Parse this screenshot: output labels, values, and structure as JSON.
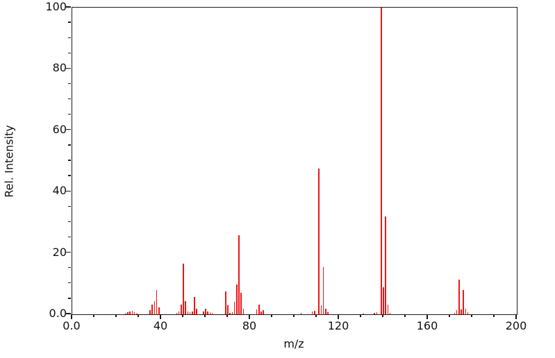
{
  "figure": {
    "background_color": "#ffffff",
    "axis_color": "#1a1a1a",
    "peak_color": "#f01414"
  },
  "chart_data": {
    "type": "bar",
    "subtype": "mass-spectrum-stick-plot",
    "title": "",
    "xlabel": "m/z",
    "ylabel": "Rel. Intensity",
    "xlim": [
      0,
      200
    ],
    "ylim": [
      0,
      100
    ],
    "grid": false,
    "legend_position": "none",
    "x_major_ticks": [
      0,
      40,
      80,
      120,
      160,
      200
    ],
    "x_tick_labels": [
      "0.0",
      "40",
      "80",
      "120",
      "160",
      "200"
    ],
    "x_minor_tick_step": 10,
    "y_major_ticks": [
      0,
      20,
      40,
      60,
      80,
      100
    ],
    "y_tick_labels": [
      "0.0",
      "20",
      "40",
      "60",
      "80",
      "100"
    ],
    "y_minor_tick_step": 5,
    "series": [
      {
        "name": "relative-intensity",
        "color": "#f01414",
        "points": [
          [
            24,
            0.3
          ],
          [
            25,
            0.6
          ],
          [
            26,
            1.0
          ],
          [
            27,
            1.1
          ],
          [
            28,
            0.6
          ],
          [
            29,
            0.3
          ],
          [
            35,
            1.4
          ],
          [
            36,
            3.2
          ],
          [
            37,
            4.2
          ],
          [
            38,
            8.0
          ],
          [
            39,
            2.3
          ],
          [
            47,
            0.5
          ],
          [
            48,
            0.9
          ],
          [
            49,
            3.2
          ],
          [
            50,
            16.5
          ],
          [
            51,
            4.2
          ],
          [
            52,
            0.8
          ],
          [
            53,
            0.6
          ],
          [
            54,
            0.8
          ],
          [
            55,
            5.7
          ],
          [
            56,
            1.9
          ],
          [
            59,
            1.0
          ],
          [
            60,
            1.9
          ],
          [
            61,
            0.9
          ],
          [
            62,
            0.7
          ],
          [
            63,
            0.5
          ],
          [
            69,
            7.5
          ],
          [
            70,
            3.0
          ],
          [
            71,
            0.5
          ],
          [
            72,
            0.7
          ],
          [
            73,
            4.0
          ],
          [
            74,
            9.8
          ],
          [
            75,
            25.9
          ],
          [
            76,
            7.0
          ],
          [
            77,
            1.8
          ],
          [
            83,
            1.5
          ],
          [
            84,
            3.2
          ],
          [
            85,
            0.9
          ],
          [
            86,
            1.3
          ],
          [
            103,
            0.5
          ],
          [
            108,
            0.9
          ],
          [
            109,
            1.2
          ],
          [
            111,
            47.5
          ],
          [
            112,
            3.0
          ],
          [
            113,
            15.5
          ],
          [
            114,
            1.9
          ],
          [
            115,
            0.7
          ],
          [
            131,
            0.3
          ],
          [
            136,
            0.4
          ],
          [
            137,
            0.6
          ],
          [
            139,
            100
          ],
          [
            140,
            8.8
          ],
          [
            141,
            31.8
          ],
          [
            142,
            3.2
          ],
          [
            143,
            0.5
          ],
          [
            172,
            0.4
          ],
          [
            173,
            1.3
          ],
          [
            174,
            11.3
          ],
          [
            175,
            1.7
          ],
          [
            176,
            8.0
          ],
          [
            177,
            1.9
          ],
          [
            178,
            0.7
          ]
        ]
      }
    ]
  }
}
